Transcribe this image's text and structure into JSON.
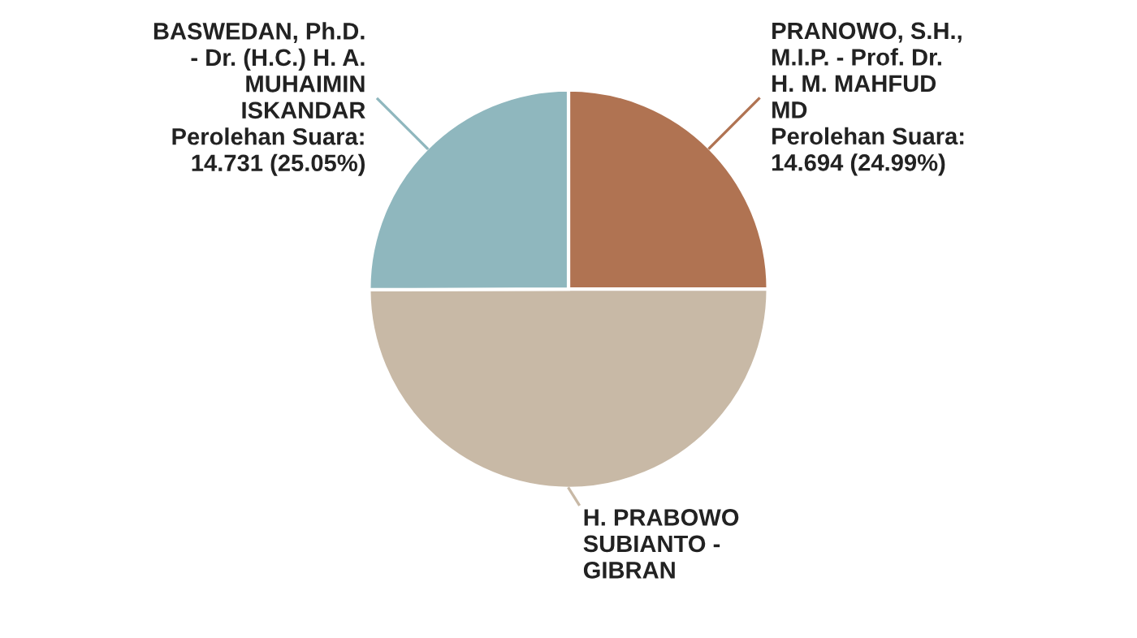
{
  "chart_data": {
    "type": "pie",
    "categories": [
      "PRANOWO, S.H.,\nM.I.P. - Prof. Dr.\nH. M. MAHFUD\nMD",
      "H. PRABOWO\nSUBIANTO -\nGIBRAN",
      "BASWEDAN, Ph.D.\n- Dr. (H.C.) H. A.\nMUHAIMIN\nISKANDAR"
    ],
    "values": [
      24.99,
      49.96,
      25.05
    ],
    "colors": [
      "#b07352",
      "#c8b9a6",
      "#8fb7be"
    ],
    "value_labels": [
      "Perolehan Suara:\n14.694 (24.99%)",
      null,
      "Perolehan Suara:\n14.731 (25.05%)"
    ],
    "legend": false
  }
}
